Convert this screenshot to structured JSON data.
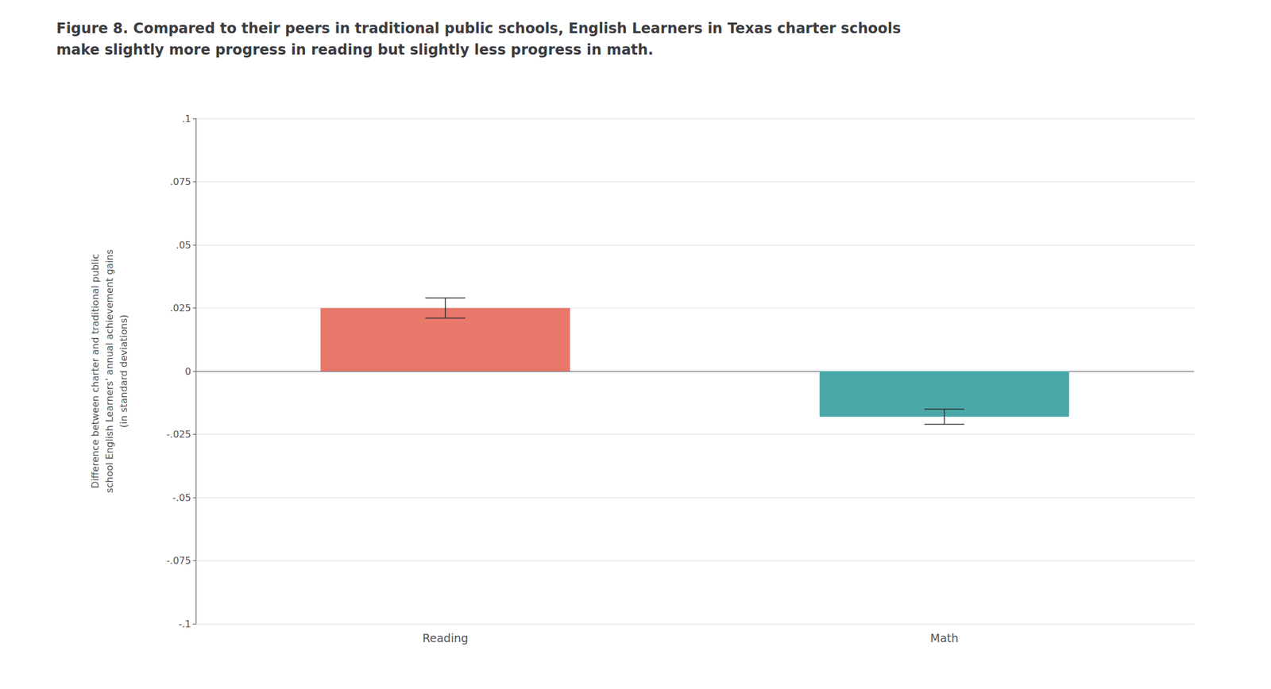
{
  "chart_data": {
    "type": "bar",
    "title": "Figure 8. Compared to their peers in traditional public schools, English Learners in Texas charter schools\nmake slightly more progress in reading but slightly less progress in math.",
    "ylabel": "Difference between charter and traditional public\nschool English Learners’ annual achievement gains\n(in standard deviations)",
    "categories": [
      "Reading",
      "Math"
    ],
    "values": [
      0.025,
      -0.018
    ],
    "errors": [
      0.004,
      0.003
    ],
    "colors": [
      "#E8786A",
      "#4AA8A8"
    ],
    "ylim": [
      -0.1,
      0.1
    ],
    "yticks": [
      {
        "value": -0.1,
        "label": "-.1"
      },
      {
        "value": -0.075,
        "label": "-.075"
      },
      {
        "value": -0.05,
        "label": "-.05"
      },
      {
        "value": -0.025,
        "label": "-.025"
      },
      0,
      {
        "value": 0.025,
        "label": ".025"
      },
      {
        "value": 0.05,
        "label": ".05"
      },
      {
        "value": 0.075,
        "label": ".075"
      },
      {
        "value": 0.1,
        "label": ".1"
      }
    ],
    "grid": true
  }
}
